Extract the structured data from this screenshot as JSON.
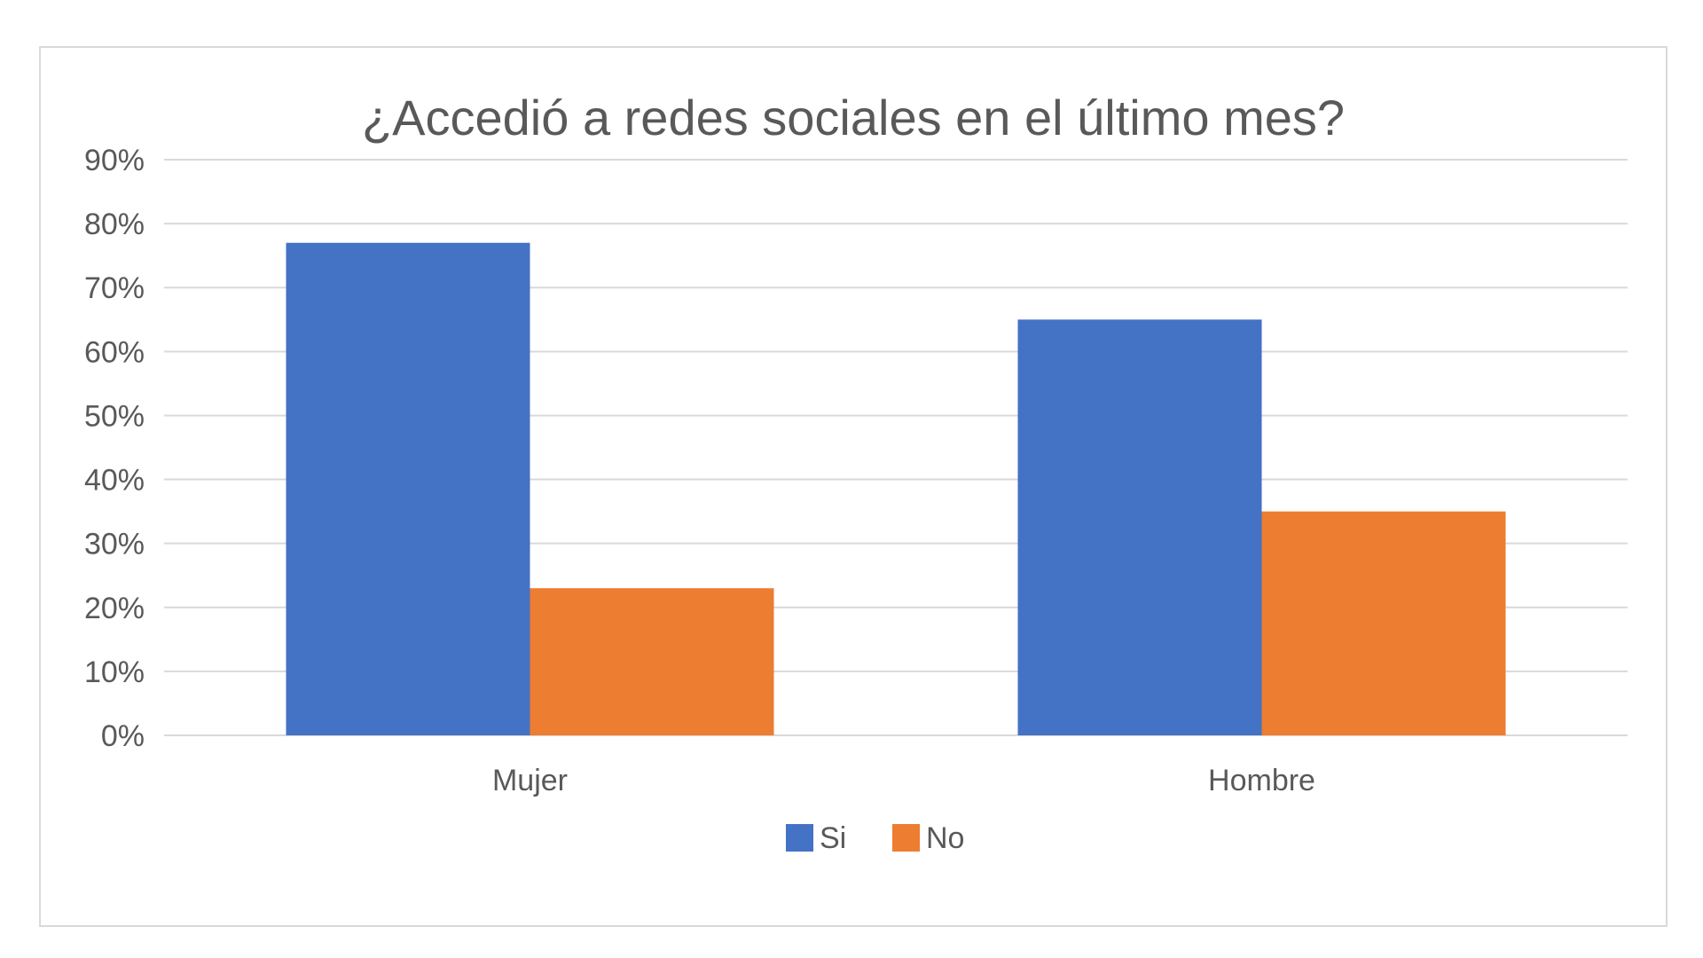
{
  "chart_data": {
    "type": "bar",
    "title": "¿Accedió a redes sociales en el último mes?",
    "xlabel": "",
    "ylabel": "",
    "categories": [
      "Mujer",
      "Hombre"
    ],
    "series": [
      {
        "name": "Si",
        "values": [
          0.77,
          0.65
        ],
        "color": "#4472c4"
      },
      {
        "name": "No",
        "values": [
          0.23,
          0.35
        ],
        "color": "#ed7d31"
      }
    ],
    "ylim": [
      0,
      0.9
    ],
    "yticks": [
      0,
      0.1,
      0.2,
      0.3,
      0.4,
      0.5,
      0.6,
      0.7,
      0.8,
      0.9
    ],
    "ytick_labels": [
      "0%",
      "10%",
      "20%",
      "30%",
      "40%",
      "50%",
      "60%",
      "70%",
      "80%",
      "90%"
    ],
    "grid": true,
    "legend_position": "bottom",
    "gridline_color": "#d9d9d9",
    "text_color": "#595959"
  }
}
